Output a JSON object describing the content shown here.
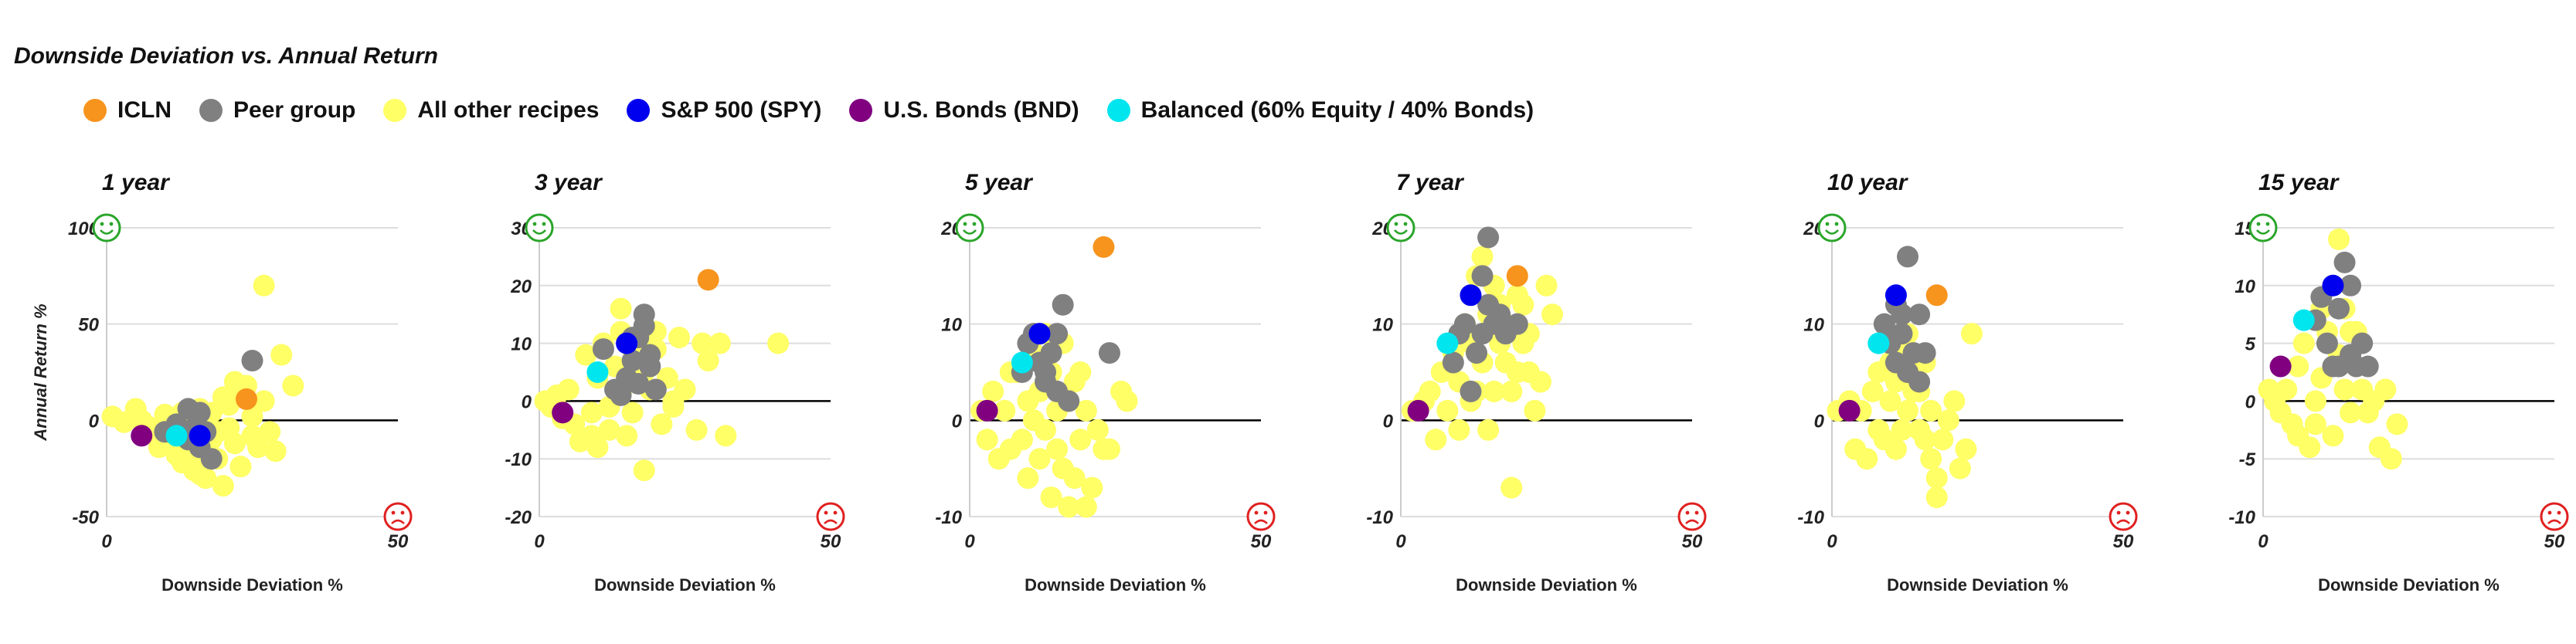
{
  "title": "Downside Deviation vs. Annual Return",
  "legend": [
    {
      "label": "ICLN",
      "color": "#f7941d"
    },
    {
      "label": "Peer group",
      "color": "#808080"
    },
    {
      "label": "All other recipes",
      "color": "#ffff66"
    },
    {
      "label": "S&P 500 (SPY)",
      "color": "#0000ee"
    },
    {
      "label": "U.S. Bonds (BND)",
      "color": "#800080"
    },
    {
      "label": "Balanced (60% Equity / 40% Bonds)",
      "color": "#00e5ee"
    }
  ],
  "chart_data": [
    {
      "type": "scatter",
      "title": "1 year",
      "xlabel": "Downside Deviation %",
      "ylabel": "Annual Return %",
      "xlim": [
        0,
        50
      ],
      "ylim": [
        -50,
        100
      ],
      "yticks": [
        -50,
        0,
        50,
        100
      ],
      "xticks": [
        0,
        50
      ],
      "others": [
        [
          1,
          2
        ],
        [
          3,
          -1
        ],
        [
          5,
          6
        ],
        [
          6,
          0
        ],
        [
          7,
          -3
        ],
        [
          8,
          -6
        ],
        [
          9,
          -14
        ],
        [
          10,
          -4
        ],
        [
          10,
          3
        ],
        [
          11,
          -8
        ],
        [
          12,
          -18
        ],
        [
          12,
          0
        ],
        [
          13,
          -22
        ],
        [
          13,
          4
        ],
        [
          14,
          -12
        ],
        [
          14,
          2
        ],
        [
          15,
          -26
        ],
        [
          15,
          -8
        ],
        [
          16,
          6
        ],
        [
          16,
          -16
        ],
        [
          17,
          -2
        ],
        [
          17,
          -30
        ],
        [
          18,
          -10
        ],
        [
          18,
          4
        ],
        [
          19,
          -20
        ],
        [
          19,
          -6
        ],
        [
          20,
          -34
        ],
        [
          20,
          12
        ],
        [
          21,
          8
        ],
        [
          21,
          -4
        ],
        [
          22,
          20
        ],
        [
          22,
          -12
        ],
        [
          23,
          -24
        ],
        [
          23,
          14
        ],
        [
          24,
          18
        ],
        [
          25,
          -8
        ],
        [
          25,
          2
        ],
        [
          26,
          -14
        ],
        [
          27,
          70
        ],
        [
          27,
          10
        ],
        [
          28,
          -6
        ],
        [
          29,
          -16
        ],
        [
          30,
          34
        ],
        [
          32,
          18
        ],
        [
          16,
          -28
        ]
      ],
      "peers": [
        [
          10,
          -6
        ],
        [
          12,
          -2
        ],
        [
          14,
          -10
        ],
        [
          15,
          -4
        ],
        [
          16,
          -14
        ],
        [
          17,
          -6
        ],
        [
          18,
          -20
        ],
        [
          16,
          4
        ],
        [
          14,
          6
        ],
        [
          25,
          31
        ]
      ],
      "icln": [
        [
          24,
          11
        ]
      ],
      "spy": [
        [
          16,
          -8
        ]
      ],
      "bnd": [
        [
          6,
          -8
        ]
      ],
      "balanced": [
        [
          12,
          -8
        ]
      ]
    },
    {
      "type": "scatter",
      "title": "3 year",
      "xlabel": "Downside Deviation %",
      "ylabel": "",
      "xlim": [
        0,
        50
      ],
      "ylim": [
        -20,
        30
      ],
      "yticks": [
        -20,
        -10,
        0,
        10,
        20,
        30
      ],
      "xticks": [
        0,
        50
      ],
      "others": [
        [
          1,
          0
        ],
        [
          2,
          -1
        ],
        [
          3,
          1
        ],
        [
          4,
          -3
        ],
        [
          5,
          2
        ],
        [
          6,
          -4
        ],
        [
          7,
          -7
        ],
        [
          8,
          8
        ],
        [
          9,
          -2
        ],
        [
          10,
          4
        ],
        [
          10,
          -8
        ],
        [
          11,
          10
        ],
        [
          12,
          -5
        ],
        [
          13,
          6
        ],
        [
          14,
          12
        ],
        [
          14,
          16
        ],
        [
          15,
          3
        ],
        [
          16,
          -2
        ],
        [
          17,
          8
        ],
        [
          18,
          -12
        ],
        [
          18,
          5
        ],
        [
          19,
          2
        ],
        [
          20,
          9
        ],
        [
          21,
          -4
        ],
        [
          22,
          4
        ],
        [
          23,
          0
        ],
        [
          24,
          11
        ],
        [
          25,
          2
        ],
        [
          27,
          -5
        ],
        [
          28,
          10
        ],
        [
          29,
          7
        ],
        [
          31,
          10
        ],
        [
          32,
          -6
        ],
        [
          41,
          10
        ],
        [
          12,
          -1
        ],
        [
          15,
          -6
        ],
        [
          20,
          12
        ],
        [
          23,
          -1
        ],
        [
          16,
          9
        ],
        [
          9,
          -6
        ]
      ],
      "peers": [
        [
          11,
          9
        ],
        [
          13,
          2
        ],
        [
          14,
          1
        ],
        [
          15,
          4
        ],
        [
          16,
          7
        ],
        [
          17,
          3
        ],
        [
          17,
          11
        ],
        [
          18,
          13
        ],
        [
          18,
          15
        ],
        [
          19,
          8
        ],
        [
          19,
          6
        ],
        [
          20,
          2
        ],
        [
          16,
          11
        ]
      ],
      "icln": [
        [
          29,
          21
        ]
      ],
      "spy": [
        [
          15,
          10
        ]
      ],
      "bnd": [
        [
          4,
          -2
        ]
      ],
      "balanced": [
        [
          10,
          5
        ]
      ]
    },
    {
      "type": "scatter",
      "title": "5 year",
      "xlabel": "Downside Deviation %",
      "ylabel": "",
      "xlim": [
        0,
        50
      ],
      "ylim": [
        -10,
        20
      ],
      "yticks": [
        -10,
        0,
        10,
        20
      ],
      "xticks": [
        0,
        50
      ],
      "others": [
        [
          2,
          1
        ],
        [
          3,
          -2
        ],
        [
          4,
          3
        ],
        [
          5,
          -4
        ],
        [
          6,
          1
        ],
        [
          7,
          -3
        ],
        [
          8,
          5
        ],
        [
          9,
          -2
        ],
        [
          10,
          2
        ],
        [
          10,
          -6
        ],
        [
          11,
          7
        ],
        [
          12,
          -4
        ],
        [
          12,
          3
        ],
        [
          13,
          -1
        ],
        [
          13,
          9
        ],
        [
          14,
          -8
        ],
        [
          14,
          5
        ],
        [
          15,
          -3
        ],
        [
          15,
          1
        ],
        [
          16,
          -5
        ],
        [
          16,
          8
        ],
        [
          17,
          -9
        ],
        [
          17,
          2
        ],
        [
          18,
          4
        ],
        [
          18,
          -6
        ],
        [
          19,
          -2
        ],
        [
          20,
          1
        ],
        [
          20,
          -9
        ],
        [
          21,
          -7
        ],
        [
          22,
          -1
        ],
        [
          23,
          -3
        ],
        [
          24,
          -3
        ],
        [
          26,
          3
        ],
        [
          27,
          2
        ],
        [
          11,
          0
        ],
        [
          7,
          5
        ],
        [
          19,
          5
        ]
      ],
      "peers": [
        [
          9,
          5
        ],
        [
          10,
          8
        ],
        [
          11,
          9
        ],
        [
          12,
          6
        ],
        [
          13,
          4
        ],
        [
          14,
          7
        ],
        [
          15,
          3
        ],
        [
          15,
          9
        ],
        [
          16,
          12
        ],
        [
          17,
          2
        ],
        [
          24,
          7
        ],
        [
          13,
          5
        ]
      ],
      "icln": [
        [
          23,
          18
        ]
      ],
      "spy": [
        [
          12,
          9
        ]
      ],
      "bnd": [
        [
          3,
          1
        ]
      ],
      "balanced": [
        [
          9,
          6
        ]
      ]
    },
    {
      "type": "scatter",
      "title": "7 year",
      "xlabel": "Downside Deviation %",
      "ylabel": "",
      "xlim": [
        0,
        50
      ],
      "ylim": [
        -10,
        20
      ],
      "yticks": [
        -10,
        0,
        10,
        20
      ],
      "xticks": [
        0,
        50
      ],
      "others": [
        [
          2,
          1
        ],
        [
          4,
          2
        ],
        [
          5,
          3
        ],
        [
          6,
          -2
        ],
        [
          7,
          5
        ],
        [
          8,
          1
        ],
        [
          9,
          7
        ],
        [
          10,
          -1
        ],
        [
          10,
          4
        ],
        [
          11,
          10
        ],
        [
          12,
          2
        ],
        [
          12,
          8
        ],
        [
          13,
          15
        ],
        [
          14,
          6
        ],
        [
          14,
          17
        ],
        [
          15,
          11
        ],
        [
          15,
          -1
        ],
        [
          16,
          14
        ],
        [
          16,
          3
        ],
        [
          17,
          12
        ],
        [
          17,
          8
        ],
        [
          18,
          6
        ],
        [
          18,
          10
        ],
        [
          19,
          3
        ],
        [
          19,
          -7
        ],
        [
          20,
          13
        ],
        [
          21,
          8
        ],
        [
          22,
          9
        ],
        [
          22,
          5
        ],
        [
          23,
          1
        ],
        [
          24,
          4
        ],
        [
          25,
          14
        ],
        [
          26,
          11
        ],
        [
          13,
          3
        ],
        [
          20,
          5
        ],
        [
          21,
          12
        ]
      ],
      "peers": [
        [
          9,
          6
        ],
        [
          10,
          9
        ],
        [
          11,
          10
        ],
        [
          12,
          3
        ],
        [
          13,
          7
        ],
        [
          14,
          9
        ],
        [
          15,
          12
        ],
        [
          15,
          19
        ],
        [
          16,
          10
        ],
        [
          17,
          11
        ],
        [
          18,
          9
        ],
        [
          20,
          10
        ],
        [
          14,
          15
        ]
      ],
      "icln": [
        [
          20,
          15
        ]
      ],
      "spy": [
        [
          12,
          13
        ]
      ],
      "bnd": [
        [
          3,
          1
        ]
      ],
      "balanced": [
        [
          8,
          8
        ]
      ]
    },
    {
      "type": "scatter",
      "title": "10 year",
      "xlabel": "Downside Deviation %",
      "ylabel": "",
      "xlim": [
        0,
        50
      ],
      "ylim": [
        -10,
        20
      ],
      "yticks": [
        -10,
        0,
        10,
        20
      ],
      "xticks": [
        0,
        50
      ],
      "others": [
        [
          1,
          1
        ],
        [
          3,
          2
        ],
        [
          4,
          -3
        ],
        [
          5,
          1
        ],
        [
          6,
          -4
        ],
        [
          7,
          3
        ],
        [
          8,
          -1
        ],
        [
          8,
          5
        ],
        [
          9,
          -2
        ],
        [
          10,
          2
        ],
        [
          11,
          -3
        ],
        [
          11,
          4
        ],
        [
          12,
          7
        ],
        [
          12,
          -1
        ],
        [
          13,
          9
        ],
        [
          13,
          1
        ],
        [
          14,
          5
        ],
        [
          15,
          -1
        ],
        [
          15,
          3
        ],
        [
          16,
          6
        ],
        [
          16,
          -2
        ],
        [
          17,
          1
        ],
        [
          18,
          -6
        ],
        [
          18,
          -8
        ],
        [
          19,
          -2
        ],
        [
          20,
          0
        ],
        [
          21,
          2
        ],
        [
          22,
          -5
        ],
        [
          23,
          -3
        ],
        [
          24,
          9
        ],
        [
          10,
          6
        ],
        [
          14,
          3
        ],
        [
          17,
          -4
        ]
      ],
      "peers": [
        [
          9,
          10
        ],
        [
          10,
          8
        ],
        [
          11,
          6
        ],
        [
          11,
          12
        ],
        [
          12,
          9
        ],
        [
          13,
          5
        ],
        [
          13,
          17
        ],
        [
          14,
          7
        ],
        [
          15,
          4
        ],
        [
          15,
          11
        ],
        [
          16,
          7
        ],
        [
          12,
          11
        ]
      ],
      "icln": [
        [
          18,
          13
        ]
      ],
      "spy": [
        [
          11,
          13
        ]
      ],
      "bnd": [
        [
          3,
          1
        ]
      ],
      "balanced": [
        [
          8,
          8
        ]
      ]
    },
    {
      "type": "scatter",
      "title": "15 year",
      "xlabel": "Downside Deviation %",
      "ylabel": "",
      "xlim": [
        0,
        50
      ],
      "ylim": [
        -10,
        15
      ],
      "yticks": [
        -10,
        -5,
        0,
        5,
        10,
        15
      ],
      "xticks": [
        0,
        50
      ],
      "others": [
        [
          1,
          1
        ],
        [
          2,
          0
        ],
        [
          3,
          -1
        ],
        [
          4,
          1
        ],
        [
          5,
          -2
        ],
        [
          6,
          3
        ],
        [
          7,
          5
        ],
        [
          8,
          -4
        ],
        [
          9,
          0
        ],
        [
          10,
          8
        ],
        [
          10,
          2
        ],
        [
          11,
          6
        ],
        [
          12,
          10
        ],
        [
          12,
          -3
        ],
        [
          13,
          14
        ],
        [
          13,
          4
        ],
        [
          14,
          8
        ],
        [
          14,
          1
        ],
        [
          15,
          6
        ],
        [
          15,
          -1
        ],
        [
          16,
          3
        ],
        [
          17,
          1
        ],
        [
          18,
          -1
        ],
        [
          19,
          0
        ],
        [
          20,
          -4
        ],
        [
          21,
          1
        ],
        [
          22,
          -5
        ],
        [
          23,
          -2
        ],
        [
          6,
          -3
        ],
        [
          9,
          -2
        ],
        [
          16,
          6
        ]
      ],
      "peers": [
        [
          9,
          7
        ],
        [
          10,
          9
        ],
        [
          11,
          5
        ],
        [
          12,
          3
        ],
        [
          13,
          8
        ],
        [
          14,
          12
        ],
        [
          15,
          10
        ],
        [
          15,
          4
        ],
        [
          16,
          3
        ],
        [
          17,
          5
        ],
        [
          18,
          3
        ],
        [
          13,
          3
        ]
      ],
      "icln": [],
      "spy": [
        [
          12,
          10
        ]
      ],
      "bnd": [
        [
          3,
          3
        ]
      ],
      "balanced": [
        [
          7,
          7
        ]
      ]
    }
  ]
}
